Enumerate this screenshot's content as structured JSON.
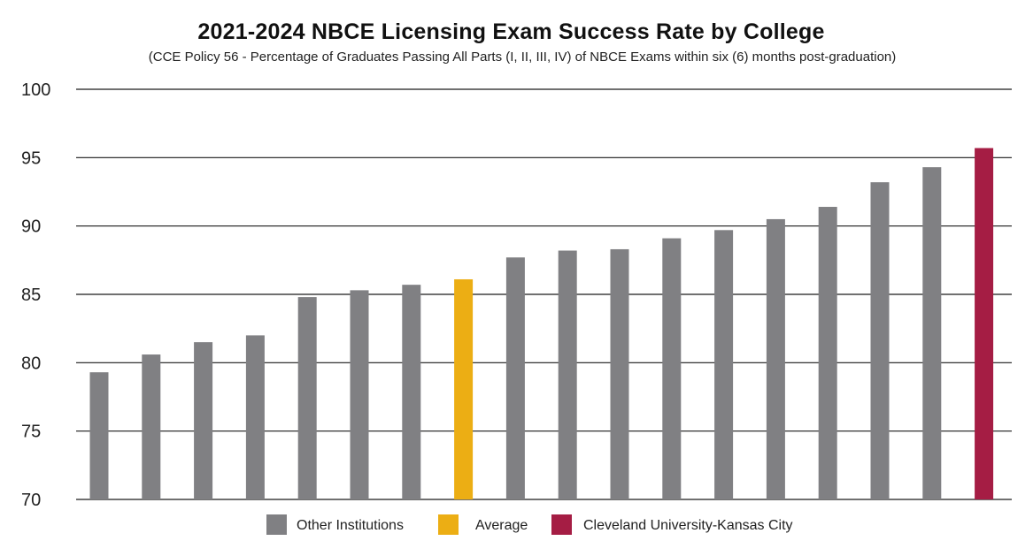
{
  "chart_data": {
    "type": "bar",
    "title": "2021-2024 NBCE Licensing Exam Success Rate by College",
    "subtitle": "(CCE Policy 56 - Percentage of Graduates Passing All Parts (I, II, III, IV) of NBCE Exams within six (6) months post-graduation)",
    "xlabel": "",
    "ylabel": "",
    "ylim": [
      70,
      100
    ],
    "yticks": [
      70,
      75,
      80,
      85,
      90,
      95,
      100
    ],
    "grid": true,
    "values": [
      79.3,
      80.6,
      81.5,
      82.0,
      84.8,
      85.3,
      85.7,
      86.1,
      87.7,
      88.2,
      88.3,
      89.1,
      89.7,
      90.5,
      91.4,
      93.2,
      94.3,
      95.7
    ],
    "groups": [
      "other",
      "other",
      "other",
      "other",
      "other",
      "other",
      "other",
      "average",
      "other",
      "other",
      "other",
      "other",
      "other",
      "other",
      "other",
      "other",
      "other",
      "cleveland"
    ],
    "colors": {
      "other": "#808083",
      "average": "#ecae14",
      "cleveland": "#a51d44"
    },
    "legend": [
      {
        "key": "other",
        "label": "Other Institutions"
      },
      {
        "key": "average",
        "label": "Average"
      },
      {
        "key": "cleveland",
        "label": "Cleveland University-Kansas City"
      }
    ],
    "legend_position": "bottom-center"
  }
}
